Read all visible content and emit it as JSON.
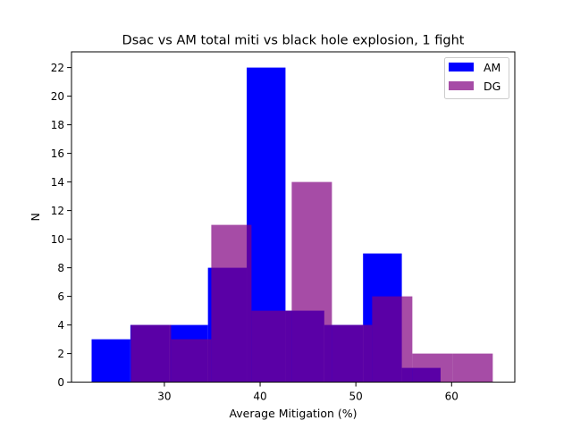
{
  "chart_data": {
    "type": "histogram",
    "title": "Dsac vs AM total miti vs black hole explosion, 1 fight",
    "xlabel": "Average Mitigation (%)",
    "ylabel": "N",
    "xlim": [
      20.3,
      66.6
    ],
    "ylim": [
      0,
      23.1
    ],
    "xticks": [
      30,
      40,
      50,
      60
    ],
    "yticks": [
      0,
      2,
      4,
      6,
      8,
      10,
      12,
      14,
      16,
      18,
      20,
      22
    ],
    "legend_position": "upper right",
    "grid": false,
    "series": [
      {
        "name": "AM",
        "color": "#0000ff",
        "alpha": 1.0,
        "bins": [
          {
            "x0": 22.4,
            "x1": 26.45,
            "count": 3
          },
          {
            "x0": 26.45,
            "x1": 30.5,
            "count": 4
          },
          {
            "x0": 30.5,
            "x1": 34.55,
            "count": 4
          },
          {
            "x0": 34.55,
            "x1": 38.6,
            "count": 8
          },
          {
            "x0": 38.6,
            "x1": 42.65,
            "count": 22
          },
          {
            "x0": 42.65,
            "x1": 46.7,
            "count": 5
          },
          {
            "x0": 46.7,
            "x1": 50.75,
            "count": 4
          },
          {
            "x0": 50.75,
            "x1": 54.8,
            "count": 9
          },
          {
            "x0": 54.8,
            "x1": 58.85,
            "count": 1
          }
        ]
      },
      {
        "name": "DG",
        "color": "#800080",
        "alpha": 0.7,
        "bins": [
          {
            "x0": 26.5,
            "x1": 30.7,
            "count": 4
          },
          {
            "x0": 30.7,
            "x1": 34.9,
            "count": 3
          },
          {
            "x0": 34.9,
            "x1": 39.1,
            "count": 11
          },
          {
            "x0": 39.1,
            "x1": 43.3,
            "count": 5
          },
          {
            "x0": 43.3,
            "x1": 47.5,
            "count": 14
          },
          {
            "x0": 47.5,
            "x1": 51.7,
            "count": 4
          },
          {
            "x0": 51.7,
            "x1": 55.9,
            "count": 6
          },
          {
            "x0": 55.9,
            "x1": 60.1,
            "count": 2
          },
          {
            "x0": 60.1,
            "x1": 64.3,
            "count": 2
          }
        ]
      }
    ]
  }
}
